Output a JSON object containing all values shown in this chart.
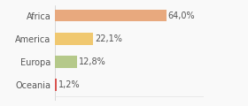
{
  "categories": [
    "Africa",
    "America",
    "Europa",
    "Oceania"
  ],
  "values": [
    64.0,
    22.1,
    12.8,
    1.2
  ],
  "labels": [
    "64,0%",
    "22,1%",
    "12,8%",
    "1,2%"
  ],
  "bar_colors": [
    "#e8a97e",
    "#f0c870",
    "#b5c98a",
    "#d9534f"
  ],
  "background_color": "#f9f9f9",
  "xlim": [
    0,
    85
  ],
  "bar_height": 0.52,
  "label_fontsize": 7,
  "category_fontsize": 7
}
